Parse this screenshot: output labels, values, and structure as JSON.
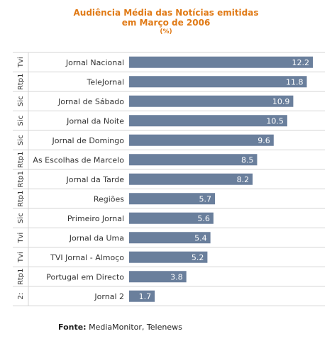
{
  "title": {
    "line1": "Audiência Média das Notícias emitidas",
    "line2": "em Março de 2006",
    "line3": "(%)"
  },
  "source": {
    "label": "Fonte:",
    "text": "MediaMonitor, Telenews"
  },
  "colors": {
    "bar": "#6a7f9c",
    "title": "#e07a16",
    "grid": "#d4d4d4"
  },
  "chart_data": {
    "type": "bar",
    "orientation": "horizontal",
    "categories": [
      "Jornal Nacional",
      "TeleJornal",
      "Jornal de Sábado",
      "Jornal da Noite",
      "Jornal de Domingo",
      "As Escolhas de Marcelo",
      "Jornal da Tarde",
      "Regiões",
      "Primeiro Jornal",
      "Jornal da Uma",
      "TVI Jornal - Almoço",
      "Portugal em Directo",
      "Jornal 2"
    ],
    "channels": [
      "Tvi",
      "Rtp1",
      "Sic",
      "Sic",
      "Sic",
      "Rtp1",
      "Rtp1",
      "Rtp1",
      "Sic",
      "Tvi",
      "Tvi",
      "Rtp1",
      "2:"
    ],
    "values": [
      12.2,
      11.8,
      10.9,
      10.5,
      9.6,
      8.5,
      8.2,
      5.7,
      5.6,
      5.4,
      5.2,
      3.8,
      1.7
    ],
    "xlim": [
      0,
      12.2
    ],
    "grid": true
  }
}
